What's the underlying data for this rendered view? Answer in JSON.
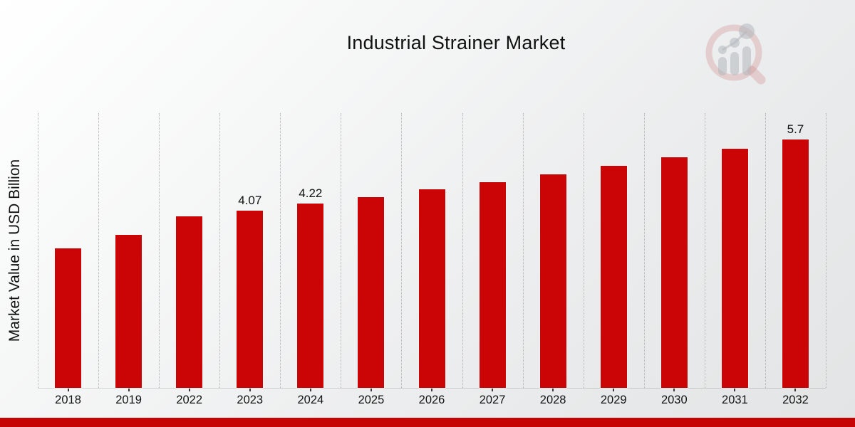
{
  "page": {
    "background_top_left": "#ffffff",
    "background_bottom_right": "#e2e4e5"
  },
  "chart_data": {
    "type": "bar",
    "title": "Industrial Strainer Market",
    "xlabel": "",
    "ylabel": "Market Value in USD Billion",
    "categories": [
      "2018",
      "2019",
      "2022",
      "2023",
      "2024",
      "2025",
      "2026",
      "2027",
      "2028",
      "2029",
      "2030",
      "2031",
      "2032"
    ],
    "values": [
      3.2,
      3.51,
      3.93,
      4.07,
      4.22,
      4.38,
      4.55,
      4.72,
      4.9,
      5.09,
      5.29,
      5.49,
      5.7
    ],
    "data_labels": [
      "",
      "",
      "",
      "4.07",
      "4.22",
      "",
      "",
      "",
      "",
      "",
      "",
      "",
      "5.7"
    ],
    "ylim": [
      0,
      6.3
    ],
    "y_axis_ticks_visible": false,
    "grid": "vertical-dotted",
    "legend": "none",
    "bar_color": "#cb0505",
    "gridline_color": "#b2b2b2",
    "label_color": "#111111"
  },
  "footer": {
    "accent_bar_color": "#c60404"
  },
  "logo": {
    "name": "magnifier-growth-chart-logo",
    "ring_color": "#cc7a7a",
    "bars_color": "#b3b8be"
  }
}
